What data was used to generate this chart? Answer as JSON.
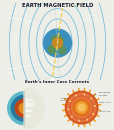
{
  "title": "EARTH MAGNETIC FIELD",
  "title_color": "#1a1a2e",
  "bg_color": "#eeeee8",
  "top_panel_bg": "#1b3d5c",
  "bottom_panel_bg": "#e8e8dc",
  "banner_color": "#f5a623",
  "banner_text": "Earth's Inner Core Currents",
  "banner_text_color": "#1a1a2e",
  "earth_ocean": "#3a8fbf",
  "earth_land": "#5a9060",
  "earth_core": "#d88818",
  "field_line_color": "#5ab0d8",
  "axis_color": "#f0d040",
  "mag_axis_color": "#c8c8c8",
  "cross_section_layers": [
    {
      "name": "Crust",
      "color": "#5ab8c8",
      "r": 0.92
    },
    {
      "name": "Mantle",
      "color": "#2878a0",
      "r": 0.72
    },
    {
      "name": "Outer Core",
      "color": "#c04818",
      "r": 0.5
    },
    {
      "name": "Inner Core",
      "color": "#e09020",
      "r": 0.28
    }
  ],
  "conv_outer_color": "#d05010",
  "conv_mid_color": "#e07020",
  "conv_inner_color": "#f0a030",
  "conv_center_color": "#e08020",
  "spike_color": "#f0a020",
  "label_color": "#444444"
}
